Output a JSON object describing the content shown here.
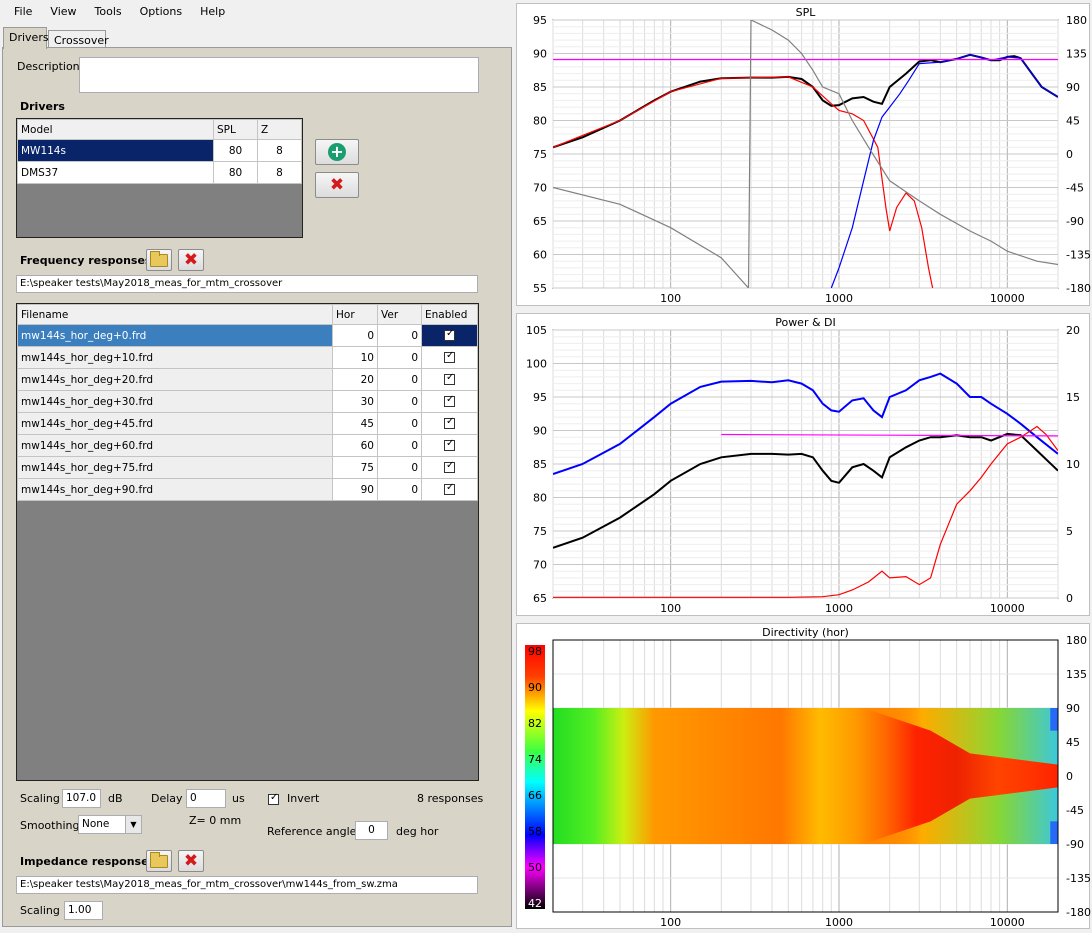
{
  "menu": [
    "File",
    "View",
    "Tools",
    "Options",
    "Help"
  ],
  "tabs": [
    "Drivers",
    "Crossover"
  ],
  "description": {
    "label": "Description",
    "value": ""
  },
  "drivers": {
    "heading": "Drivers",
    "columns": [
      "Model",
      "SPL",
      "Z"
    ],
    "rows": [
      {
        "model": "MW114s",
        "spl": "80",
        "z": "8"
      },
      {
        "model": "DMS37",
        "spl": "80",
        "z": "8"
      }
    ]
  },
  "frequency": {
    "heading": "Frequency responses",
    "path": "E:\\speaker tests\\May2018_meas_for_mtm_crossover",
    "columns": [
      "Filename",
      "Hor",
      "Ver",
      "Enabled"
    ],
    "rows": [
      {
        "file": "mw144s_hor_deg+0.frd",
        "hor": "0",
        "ver": "0"
      },
      {
        "file": "mw144s_hor_deg+10.frd",
        "hor": "10",
        "ver": "0"
      },
      {
        "file": "mw144s_hor_deg+20.frd",
        "hor": "20",
        "ver": "0"
      },
      {
        "file": "mw144s_hor_deg+30.frd",
        "hor": "30",
        "ver": "0"
      },
      {
        "file": "mw144s_hor_deg+45.frd",
        "hor": "45",
        "ver": "0"
      },
      {
        "file": "mw144s_hor_deg+60.frd",
        "hor": "60",
        "ver": "0"
      },
      {
        "file": "mw144s_hor_deg+75.frd",
        "hor": "75",
        "ver": "0"
      },
      {
        "file": "mw144s_hor_deg+90.frd",
        "hor": "90",
        "ver": "0"
      }
    ]
  },
  "controls": {
    "scaling_label": "Scaling",
    "scaling_value": "107.0",
    "scaling_unit": "dB",
    "delay_label": "Delay",
    "delay_value": "0",
    "delay_unit": "us",
    "invert_label": "Invert",
    "responses": "8 responses",
    "smoothing_label": "Smoothing",
    "smoothing_value": "None",
    "z_label": "Z= 0 mm",
    "ref_angle_label": "Reference angle",
    "ref_angle_value": "0",
    "ref_angle_unit": "deg hor"
  },
  "impedance": {
    "heading": "Impedance response",
    "path": "E:\\speaker tests\\May2018_meas_for_mtm_crossover\\mw144s_from_sw.zma",
    "scaling_label": "Scaling",
    "scaling_value": "1.00"
  },
  "colors": {
    "panel": "#d8d4c8",
    "selected": "#0a246a",
    "selected2": "#3b7fbf"
  },
  "chart_data": [
    {
      "type": "line",
      "title": "SPL",
      "x_scale": "log",
      "xlim": [
        20,
        20000
      ],
      "x_ticks": [
        "100",
        "1000",
        "10000"
      ],
      "ylim": [
        55,
        95
      ],
      "y_ticks": [
        "95",
        "90",
        "85",
        "80",
        "75",
        "70",
        "65",
        "60",
        "55"
      ],
      "y2lim": [
        -180,
        180
      ],
      "y2_ticks": [
        "180",
        "135",
        "90",
        "45",
        "0",
        "-45",
        "-90",
        "-135",
        "-180"
      ],
      "series": [
        {
          "color": "#000000",
          "points": [
            [
              20,
              76
            ],
            [
              30,
              77.5
            ],
            [
              50,
              80
            ],
            [
              80,
              83
            ],
            [
              100,
              84.3
            ],
            [
              150,
              85.8
            ],
            [
              200,
              86.3
            ],
            [
              300,
              86.4
            ],
            [
              400,
              86.4
            ],
            [
              500,
              86.5
            ],
            [
              600,
              86.2
            ],
            [
              700,
              85
            ],
            [
              800,
              83
            ],
            [
              900,
              82.2
            ],
            [
              1000,
              82.3
            ],
            [
              1200,
              83.3
            ],
            [
              1400,
              83.5
            ],
            [
              1600,
              82.8
            ],
            [
              1800,
              82.5
            ],
            [
              2000,
              85
            ],
            [
              2500,
              87
            ],
            [
              3000,
              88.8
            ],
            [
              3500,
              89
            ],
            [
              4000,
              88.7
            ],
            [
              5000,
              89.2
            ],
            [
              6000,
              89.8
            ],
            [
              7000,
              89.4
            ],
            [
              8000,
              89
            ],
            [
              9000,
              89
            ],
            [
              10000,
              89.5
            ],
            [
              11000,
              89.6
            ],
            [
              12000,
              89.3
            ],
            [
              14000,
              87
            ],
            [
              16000,
              85
            ],
            [
              20000,
              83.5
            ]
          ]
        },
        {
          "color": "#ff0000",
          "points": [
            [
              20,
              76
            ],
            [
              50,
              80
            ],
            [
              100,
              84.3
            ],
            [
              200,
              86.3
            ],
            [
              500,
              86.5
            ],
            [
              700,
              85
            ],
            [
              900,
              82.5
            ],
            [
              1000,
              81.5
            ],
            [
              1200,
              81
            ],
            [
              1400,
              80
            ],
            [
              1700,
              76
            ],
            [
              1900,
              67
            ],
            [
              2000,
              63.5
            ],
            [
              2200,
              67
            ],
            [
              2500,
              69.2
            ],
            [
              2800,
              68
            ],
            [
              3100,
              64
            ],
            [
              3400,
              58
            ],
            [
              3600,
              55
            ]
          ]
        },
        {
          "color": "#0000ff",
          "points": [
            [
              900,
              55
            ],
            [
              1000,
              58
            ],
            [
              1200,
              64
            ],
            [
              1400,
              71
            ],
            [
              1600,
              77
            ],
            [
              1800,
              80.5
            ],
            [
              2000,
              82
            ],
            [
              2300,
              84
            ],
            [
              2600,
              86
            ],
            [
              3000,
              88.5
            ],
            [
              4000,
              88.7
            ],
            [
              5000,
              89.2
            ],
            [
              6000,
              89.8
            ],
            [
              7000,
              89.4
            ],
            [
              8000,
              89
            ],
            [
              10000,
              89.5
            ],
            [
              12000,
              89.3
            ],
            [
              14000,
              87
            ],
            [
              16000,
              85
            ],
            [
              20000,
              83.5
            ]
          ]
        },
        {
          "color": "#ff00ff",
          "points": [
            [
              20,
              89.1
            ],
            [
              20000,
              89.1
            ]
          ]
        },
        {
          "color": "#808080",
          "points": [
            [
              20,
              70
            ],
            [
              50,
              67.5
            ],
            [
              100,
              64
            ],
            [
              200,
              59.5
            ],
            [
              290,
              55
            ],
            [
              300,
              95
            ],
            [
              400,
              93.5
            ],
            [
              500,
              92
            ],
            [
              600,
              90
            ],
            [
              700,
              87.5
            ],
            [
              800,
              85
            ],
            [
              1000,
              84
            ],
            [
              1200,
              80
            ],
            [
              1500,
              76
            ],
            [
              2000,
              71
            ],
            [
              3000,
              68
            ],
            [
              4000,
              66
            ],
            [
              6000,
              63.5
            ],
            [
              8000,
              62
            ],
            [
              10000,
              60.5
            ],
            [
              15000,
              59
            ],
            [
              20000,
              58.5
            ]
          ]
        }
      ]
    },
    {
      "type": "line",
      "title": "Power & DI",
      "x_scale": "log",
      "xlim": [
        20,
        20000
      ],
      "x_ticks": [
        "100",
        "1000",
        "10000"
      ],
      "ylim": [
        65,
        105
      ],
      "y_ticks": [
        "105",
        "100",
        "95",
        "90",
        "85",
        "80",
        "75",
        "70",
        "65"
      ],
      "y2lim": [
        0,
        20
      ],
      "y2_ticks": [
        "20",
        "15",
        "10",
        "5",
        "0"
      ],
      "series": [
        {
          "color": "#0000ff",
          "points": [
            [
              20,
              83.5
            ],
            [
              30,
              85
            ],
            [
              50,
              88
            ],
            [
              80,
              92
            ],
            [
              100,
              94
            ],
            [
              150,
              96.5
            ],
            [
              200,
              97.3
            ],
            [
              300,
              97.4
            ],
            [
              400,
              97.2
            ],
            [
              500,
              97.5
            ],
            [
              600,
              97
            ],
            [
              700,
              96
            ],
            [
              800,
              94
            ],
            [
              900,
              93
            ],
            [
              1000,
              92.8
            ],
            [
              1200,
              94.5
            ],
            [
              1400,
              94.8
            ],
            [
              1600,
              93
            ],
            [
              1800,
              92
            ],
            [
              2000,
              95
            ],
            [
              2500,
              96
            ],
            [
              3000,
              97.5
            ],
            [
              3500,
              98
            ],
            [
              4000,
              98.5
            ],
            [
              5000,
              97
            ],
            [
              6000,
              95
            ],
            [
              7000,
              95
            ],
            [
              8000,
              94
            ],
            [
              10000,
              92.5
            ],
            [
              12000,
              91
            ],
            [
              15000,
              89
            ],
            [
              20000,
              86.5
            ]
          ]
        },
        {
          "color": "#000000",
          "points": [
            [
              20,
              72.5
            ],
            [
              30,
              74
            ],
            [
              50,
              77
            ],
            [
              80,
              80.5
            ],
            [
              100,
              82.5
            ],
            [
              150,
              85
            ],
            [
              200,
              86
            ],
            [
              300,
              86.5
            ],
            [
              400,
              86.5
            ],
            [
              500,
              86.4
            ],
            [
              600,
              86.5
            ],
            [
              700,
              86
            ],
            [
              800,
              84
            ],
            [
              900,
              82.5
            ],
            [
              1000,
              82.2
            ],
            [
              1200,
              84.5
            ],
            [
              1400,
              85
            ],
            [
              1600,
              84
            ],
            [
              1800,
              83
            ],
            [
              2000,
              86
            ],
            [
              2500,
              87.5
            ],
            [
              3000,
              88.5
            ],
            [
              3500,
              89
            ],
            [
              4000,
              89
            ],
            [
              5000,
              89.3
            ],
            [
              6000,
              89
            ],
            [
              7000,
              89
            ],
            [
              8000,
              88.5
            ],
            [
              10000,
              89.5
            ],
            [
              12000,
              89.3
            ],
            [
              15000,
              87
            ],
            [
              20000,
              84
            ]
          ]
        },
        {
          "color": "#ff0000",
          "points": [
            [
              20,
              0.05
            ],
            [
              500,
              0.05
            ],
            [
              800,
              0.1
            ],
            [
              1000,
              0.25
            ],
            [
              1200,
              0.6
            ],
            [
              1500,
              1.2
            ],
            [
              1800,
              2
            ],
            [
              2000,
              1.5
            ],
            [
              2500,
              1.6
            ],
            [
              3000,
              1
            ],
            [
              3500,
              1.5
            ],
            [
              4000,
              4
            ],
            [
              5000,
              7
            ],
            [
              6000,
              8
            ],
            [
              7000,
              9
            ],
            [
              8000,
              10
            ],
            [
              10000,
              11.5
            ],
            [
              12000,
              12
            ],
            [
              15000,
              12.8
            ],
            [
              17000,
              12.2
            ],
            [
              20000,
              11
            ]
          ]
        },
        {
          "color": "#ff00ff",
          "points": [
            [
              200,
              89.4
            ],
            [
              20000,
              89.2
            ]
          ]
        }
      ]
    },
    {
      "type": "heatmap",
      "title": "Directivity (hor)",
      "x_scale": "log",
      "xlim": [
        20,
        20000
      ],
      "x_ticks": [
        "100",
        "1000",
        "10000"
      ],
      "ylim": [
        -180,
        180
      ],
      "y2_ticks": [
        "180",
        "135",
        "90",
        "45",
        "0",
        "-45",
        "-90",
        "-135",
        "-180"
      ],
      "colorbar_ticks": [
        "98",
        "90",
        "82",
        "74",
        "66",
        "58",
        "50",
        "42"
      ]
    }
  ]
}
